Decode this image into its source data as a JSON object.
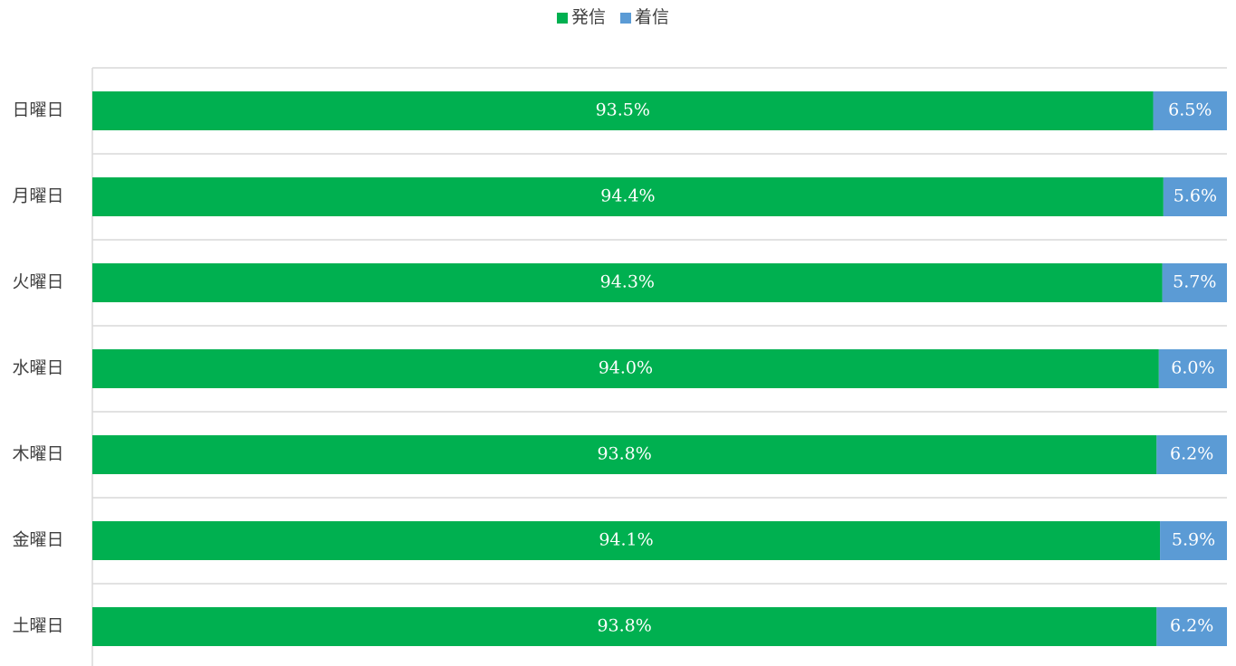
{
  "chart_data": {
    "type": "stacked-bar-horizontal",
    "categories": [
      "日曜日",
      "月曜日",
      "火曜日",
      "水曜日",
      "木曜日",
      "金曜日",
      "土曜日"
    ],
    "series": [
      {
        "name": "発信",
        "color": "#00b050",
        "values": [
          93.5,
          94.4,
          94.3,
          94.0,
          93.8,
          94.1,
          93.8
        ],
        "value_labels": [
          "93.5%",
          "94.4%",
          "94.3%",
          "94.0%",
          "93.8%",
          "94.1%",
          "93.8%"
        ]
      },
      {
        "name": "着信",
        "color": "#5b9bd5",
        "values": [
          6.5,
          5.6,
          5.7,
          6.0,
          6.2,
          5.9,
          6.2
        ],
        "value_labels": [
          "6.5%",
          "5.6%",
          "5.7%",
          "6.0%",
          "6.2%",
          "5.9%",
          "6.2%"
        ]
      }
    ],
    "xlim": [
      0,
      100
    ],
    "legend": "top"
  }
}
